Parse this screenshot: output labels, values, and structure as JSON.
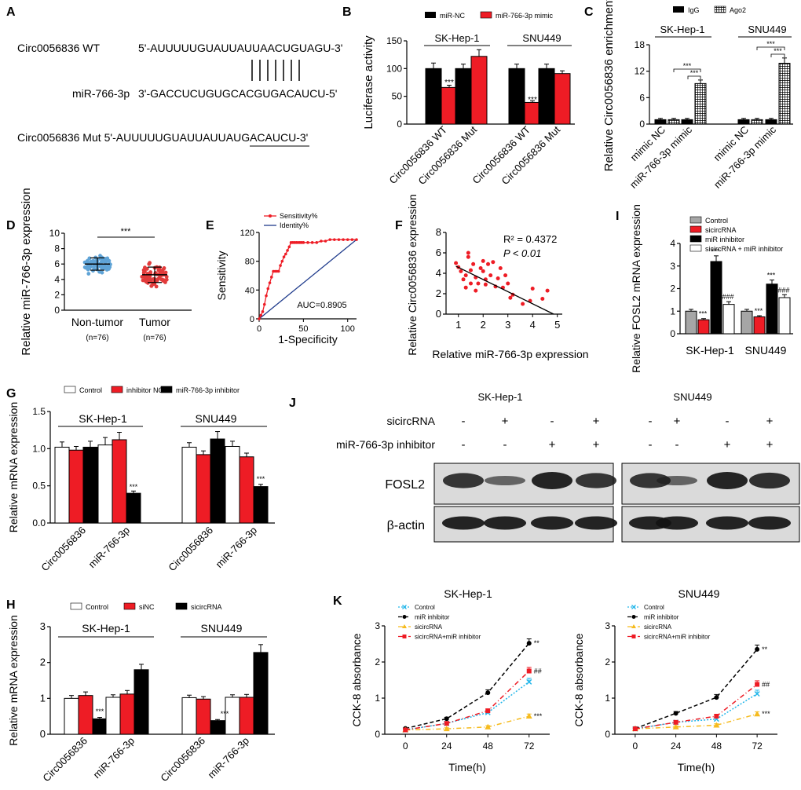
{
  "panel_letters": [
    "A",
    "B",
    "C",
    "D",
    "E",
    "F",
    "G",
    "H",
    "I",
    "J",
    "K"
  ],
  "colors": {
    "red": "#ee1c25",
    "black": "#000000",
    "white": "#ffffff",
    "gray": "#a6a6a6",
    "cyan": "#25b7ea",
    "orange": "#f6bb1e"
  },
  "panelA": {
    "wt_label": "Circ0056836 WT",
    "wt_seq": "5'-AUUUUUGUAUUAUUAACUGUAGU-3'",
    "mir_label": "miR-766-3p",
    "mir_seq": "3'-GACCUCUGUGCACGUGACAUCU-5'",
    "mut_label": "Circ0056836 Mut",
    "mut_seq_prefix": "5'-AUUUUUGUAUUAUUA",
    "mut_seq_site": "UGACAUC",
    "mut_seq_suffix": "U-3'"
  },
  "chart_data": [
    {
      "id": "B",
      "type": "bar",
      "ylabel": "Luciferase activity",
      "ylim": [
        0,
        150
      ],
      "yticks": [
        0,
        50,
        100,
        150
      ],
      "legend": [
        "miR-NC",
        "miR-766-3p mimic"
      ],
      "groups": [
        "SK-Hep-1",
        "SNU449"
      ],
      "categories": [
        "Circ0056836 WT",
        "Circ0056836 Mut",
        "Circ0056836 WT",
        "Circ0056836 Mut"
      ],
      "series": [
        {
          "name": "miR-NC",
          "values": [
            100,
            100,
            100,
            100
          ],
          "errors": [
            10,
            8,
            8,
            8
          ]
        },
        {
          "name": "miR-766-3p mimic",
          "values": [
            66,
            122,
            39,
            91
          ],
          "errors": [
            4,
            12,
            3,
            5
          ]
        }
      ],
      "annotations": [
        "***",
        "***"
      ]
    },
    {
      "id": "C",
      "type": "bar",
      "ylabel": "Relative Circ0056836 enrichment",
      "ylim": [
        0,
        18
      ],
      "yticks": [
        0,
        6,
        12,
        18
      ],
      "legend": [
        "IgG",
        "Ago2"
      ],
      "groups": [
        "SK-Hep-1",
        "SNU449"
      ],
      "categories": [
        "mimic NC",
        "miR-766-3p mimic",
        "mimic NC",
        "miR-766-3p mimic"
      ],
      "series": [
        {
          "name": "IgG",
          "values": [
            1,
            1,
            1,
            1
          ],
          "errors": [
            0.3,
            0.3,
            0.3,
            0.3
          ]
        },
        {
          "name": "Ago2",
          "values": [
            1,
            9.2,
            1,
            13.8
          ],
          "errors": [
            0.3,
            0.8,
            0.3,
            1.2
          ]
        }
      ],
      "annotations": [
        "***",
        "***",
        "***",
        "***"
      ]
    },
    {
      "id": "D",
      "type": "scatter",
      "ylabel": "Relative miR-766-3p expression",
      "ylim": [
        0,
        10
      ],
      "yticks": [
        0,
        2,
        4,
        6,
        8,
        10
      ],
      "categories": [
        "Non-tumor",
        "Tumor"
      ],
      "n_labels": [
        "(n=76)",
        "(n=76)"
      ],
      "means": [
        6.0,
        4.6
      ],
      "sd": [
        0.8,
        1.0
      ],
      "n": [
        76,
        76
      ],
      "annotation": "***"
    },
    {
      "id": "E",
      "type": "line",
      "xlabel": "1-Specificity",
      "ylabel": "Sensitivity",
      "xlim": [
        0,
        110
      ],
      "ylim": [
        0,
        120
      ],
      "xticks": [
        0,
        50,
        100
      ],
      "yticks": [
        0,
        40,
        80,
        120
      ],
      "legend": [
        "Sensitivity%",
        "Identity%"
      ],
      "roc_x": [
        0,
        2,
        4,
        6,
        8,
        10,
        12,
        14,
        16,
        18,
        20,
        22,
        24,
        26,
        28,
        30,
        32,
        34,
        36,
        38,
        40,
        42,
        44,
        46,
        48,
        50,
        55,
        60,
        65,
        70,
        75,
        80,
        85,
        90,
        95,
        100,
        105,
        110
      ],
      "roc_y": [
        0,
        5,
        10,
        20,
        32,
        42,
        50,
        58,
        66,
        66,
        66,
        66,
        74,
        80,
        86,
        90,
        95,
        100,
        106,
        106,
        106,
        106,
        106,
        106,
        106,
        106,
        106,
        106,
        106,
        108,
        108,
        110,
        110,
        110,
        110,
        110,
        110,
        110
      ],
      "identity_x": [
        0,
        110
      ],
      "identity_y": [
        0,
        110
      ],
      "annotation": "AUC=0.8905"
    },
    {
      "id": "F",
      "type": "scatter",
      "xlabel": "Relative miR-766-3p expression",
      "ylabel": "Relative Circ0056836 expression",
      "xlim": [
        0.5,
        5.2
      ],
      "ylim": [
        0,
        8
      ],
      "xticks": [
        1,
        2,
        3,
        4,
        5
      ],
      "yticks": [
        0,
        2,
        4,
        6,
        8
      ],
      "x": [
        0.9,
        1.0,
        1.1,
        1.2,
        1.3,
        1.3,
        1.4,
        1.4,
        1.5,
        1.5,
        1.6,
        1.7,
        1.7,
        1.8,
        1.9,
        2.0,
        2.0,
        2.1,
        2.1,
        2.2,
        2.3,
        2.4,
        2.5,
        2.6,
        2.7,
        2.8,
        2.9,
        3.0,
        3.1,
        3.2,
        3.6,
        3.9,
        4.0,
        4.4,
        4.6
      ],
      "y": [
        5.0,
        4.6,
        4.2,
        3.4,
        3.8,
        2.6,
        6.0,
        5.6,
        4.3,
        3.0,
        4.9,
        3.6,
        2.3,
        3.0,
        4.5,
        4.2,
        5.2,
        3.4,
        2.9,
        4.9,
        3.8,
        5.1,
        2.7,
        3.5,
        4.5,
        2.6,
        3.8,
        3.0,
        1.6,
        1.9,
        1.0,
        1.3,
        2.5,
        1.5,
        2.3
      ],
      "fit_x": [
        0.9,
        4.85
      ],
      "fit_y": [
        4.7,
        0.0
      ],
      "r2_text": "R² = 0.4372",
      "p_text": "P < 0.01"
    },
    {
      "id": "I",
      "type": "bar",
      "ylabel": "Relative FOSL2 mRNA expression",
      "ylim": [
        0,
        4
      ],
      "yticks": [
        0,
        1,
        2,
        3,
        4
      ],
      "legend": [
        "Control",
        "sicircRNA",
        "miR inhibitor",
        "sicircRNA + miR inhibitor"
      ],
      "categories": [
        "SK-Hep-1",
        "SNU449"
      ],
      "series": [
        {
          "name": "Control",
          "values": [
            1.0,
            1.0
          ],
          "errors": [
            0.08,
            0.08
          ]
        },
        {
          "name": "sicircRNA",
          "values": [
            0.62,
            0.75
          ],
          "errors": [
            0.05,
            0.05
          ]
        },
        {
          "name": "miR inhibitor",
          "values": [
            3.2,
            2.2
          ],
          "errors": [
            0.25,
            0.18
          ]
        },
        {
          "name": "sicircRNA + miR inhibitor",
          "values": [
            1.3,
            1.6
          ],
          "errors": [
            0.12,
            0.13
          ]
        }
      ],
      "annotations": [
        "***",
        "***",
        "###",
        "***",
        "***",
        "###"
      ]
    },
    {
      "id": "G",
      "type": "bar",
      "ylabel": "Relative mRNA expression",
      "ylim": [
        0,
        1.5
      ],
      "yticks": [
        0.0,
        0.5,
        1.0,
        1.5
      ],
      "legend": [
        "Control",
        "inhibitor NC",
        "miR-766-3p inhibitor"
      ],
      "groups": [
        "SK-Hep-1",
        "SNU449"
      ],
      "categories": [
        "Circ0056836",
        "miR-766-3p",
        "Circ0056836",
        "miR-766-3p"
      ],
      "series": [
        {
          "name": "Control",
          "values": [
            1.02,
            1.05,
            1.02,
            1.03
          ],
          "errors": [
            0.07,
            0.1,
            0.06,
            0.07
          ]
        },
        {
          "name": "inhibitor NC",
          "values": [
            0.98,
            1.12,
            0.92,
            0.89
          ],
          "errors": [
            0.05,
            0.1,
            0.05,
            0.05
          ]
        },
        {
          "name": "miR-766-3p inhibitor",
          "values": [
            1.02,
            0.4,
            1.13,
            0.49
          ],
          "errors": [
            0.08,
            0.03,
            0.1,
            0.03
          ]
        }
      ],
      "annotations": [
        "***",
        "***"
      ]
    },
    {
      "id": "H",
      "type": "bar",
      "ylabel": "Relative mRNA expression",
      "ylim": [
        0,
        3
      ],
      "yticks": [
        0,
        1,
        2,
        3
      ],
      "legend": [
        "Control",
        "siNC",
        "sicircRNA"
      ],
      "groups": [
        "SK-Hep-1",
        "SNU449"
      ],
      "categories": [
        "Circ0056836",
        "miR-766-3p",
        "Circ0056836",
        "miR-766-3p"
      ],
      "series": [
        {
          "name": "Control",
          "values": [
            1.0,
            1.03,
            1.02,
            1.03
          ],
          "errors": [
            0.08,
            0.07,
            0.07,
            0.07
          ]
        },
        {
          "name": "siNC",
          "values": [
            1.08,
            1.12,
            0.98,
            1.03
          ],
          "errors": [
            0.1,
            0.1,
            0.07,
            0.08
          ]
        },
        {
          "name": "sicircRNA",
          "values": [
            0.43,
            1.8,
            0.38,
            2.28
          ],
          "errors": [
            0.04,
            0.15,
            0.03,
            0.22
          ]
        }
      ],
      "annotations": [
        "***",
        "***"
      ]
    },
    {
      "id": "K1",
      "type": "line",
      "title": "SK-Hep-1",
      "xlabel": "Time(h)",
      "ylabel": "CCK-8 absorbance",
      "xlim": [
        0,
        72
      ],
      "ylim": [
        0,
        3
      ],
      "xticks": [
        0,
        24,
        48,
        72
      ],
      "yticks": [
        0,
        1,
        2,
        3
      ],
      "x": [
        0,
        24,
        48,
        72
      ],
      "series": [
        {
          "name": "Control",
          "values": [
            0.12,
            0.3,
            0.6,
            1.45
          ],
          "errors": [
            0.02,
            0.04,
            0.05,
            0.1
          ]
        },
        {
          "name": "miR inhibitor",
          "values": [
            0.16,
            0.43,
            1.15,
            2.52
          ],
          "errors": [
            0.02,
            0.04,
            0.08,
            0.12
          ]
        },
        {
          "name": "sicircRNA",
          "values": [
            0.12,
            0.15,
            0.2,
            0.5
          ],
          "errors": [
            0.02,
            0.03,
            0.04,
            0.06
          ]
        },
        {
          "name": "sicircRNA+miR inhibitor",
          "values": [
            0.12,
            0.3,
            0.65,
            1.75
          ],
          "errors": [
            0.02,
            0.04,
            0.05,
            0.1
          ]
        }
      ],
      "annotations": [
        "**",
        "##",
        "***"
      ]
    },
    {
      "id": "K2",
      "type": "line",
      "title": "SNU449",
      "xlabel": "Time(h)",
      "ylabel": "CCK-8 absorbance",
      "xlim": [
        0,
        72
      ],
      "ylim": [
        0,
        3
      ],
      "xticks": [
        0,
        24,
        48,
        72
      ],
      "yticks": [
        0,
        1,
        2,
        3
      ],
      "x": [
        0,
        24,
        48,
        72
      ],
      "series": [
        {
          "name": "Control",
          "values": [
            0.15,
            0.33,
            0.42,
            1.12
          ],
          "errors": [
            0.02,
            0.04,
            0.05,
            0.1
          ]
        },
        {
          "name": "miR inhibitor",
          "values": [
            0.16,
            0.58,
            1.02,
            2.35
          ],
          "errors": [
            0.02,
            0.05,
            0.08,
            0.12
          ]
        },
        {
          "name": "sicircRNA",
          "values": [
            0.15,
            0.2,
            0.25,
            0.56
          ],
          "errors": [
            0.02,
            0.03,
            0.04,
            0.06
          ]
        },
        {
          "name": "sicircRNA+miR inhibitor",
          "values": [
            0.15,
            0.33,
            0.5,
            1.38
          ],
          "errors": [
            0.02,
            0.04,
            0.05,
            0.1
          ]
        }
      ],
      "annotations": [
        "**",
        "##",
        "***"
      ]
    }
  ],
  "western_blot": {
    "groups": [
      "SK-Hep-1",
      "SNU449"
    ],
    "row_labels": [
      "sicircRNA",
      "miR-766-3p inhibitor"
    ],
    "lanes_sicircRNA": [
      "-",
      "+",
      "-",
      "+",
      "-",
      "+",
      "-",
      "+"
    ],
    "lanes_inhibitor": [
      "-",
      "-",
      "+",
      "+",
      "-",
      "-",
      "+",
      "+"
    ],
    "bands": [
      "FOSL2",
      "β-actin"
    ],
    "fosl2_intensity": [
      0.85,
      0.45,
      1.0,
      0.85,
      0.85,
      0.45,
      1.0,
      0.9
    ],
    "actin_intensity": [
      0.95,
      0.95,
      0.95,
      0.95,
      0.95,
      0.95,
      0.95,
      0.95
    ]
  }
}
